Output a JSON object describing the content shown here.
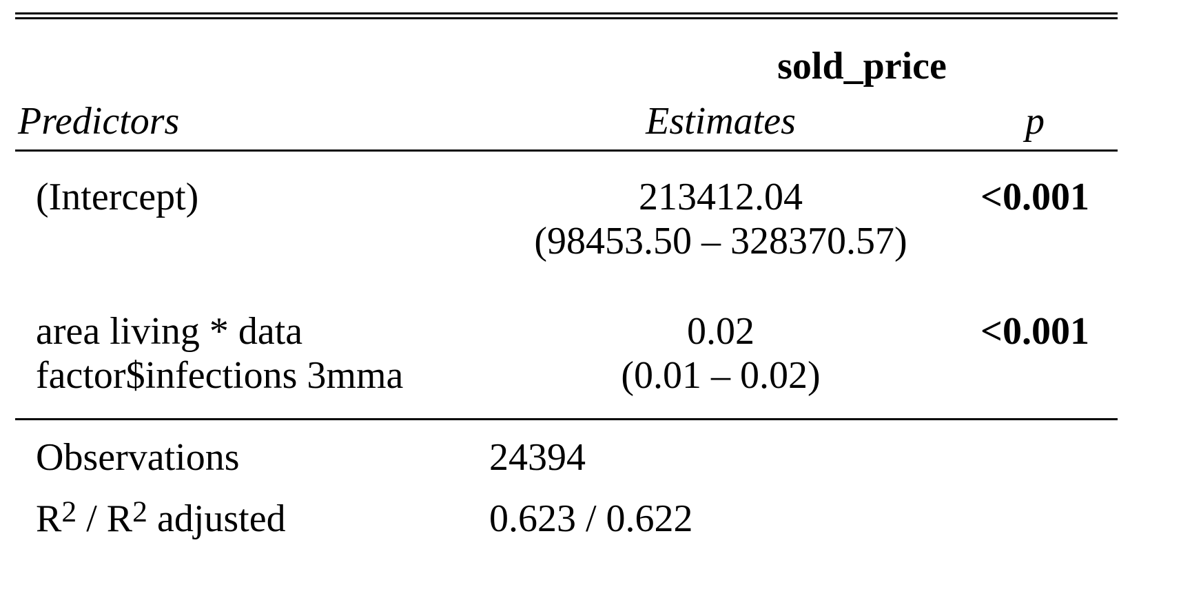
{
  "dependent_variable": "sold_price",
  "headers": {
    "predictors": "Predictors",
    "estimates": "Estimates",
    "p": "p"
  },
  "rows": [
    {
      "predictor_lines": [
        "(Intercept)"
      ],
      "estimate": "213412.04",
      "ci": "(98453.50 – 328370.57)",
      "p": "<0.001"
    },
    {
      "predictor_lines": [
        "area living * data",
        "factor$infections 3mma"
      ],
      "estimate": "0.02",
      "ci": "(0.01 – 0.02)",
      "p": "<0.001"
    }
  ],
  "stats": {
    "observations_label": "Observations",
    "observations_value": "24394",
    "r2_label_r": "R",
    "r2_label_sup": "2",
    "r2_label_sep": " / R",
    "r2_label_sup2": "2",
    "r2_label_tail": " adjusted",
    "r2_value": "0.623 / 0.622"
  }
}
